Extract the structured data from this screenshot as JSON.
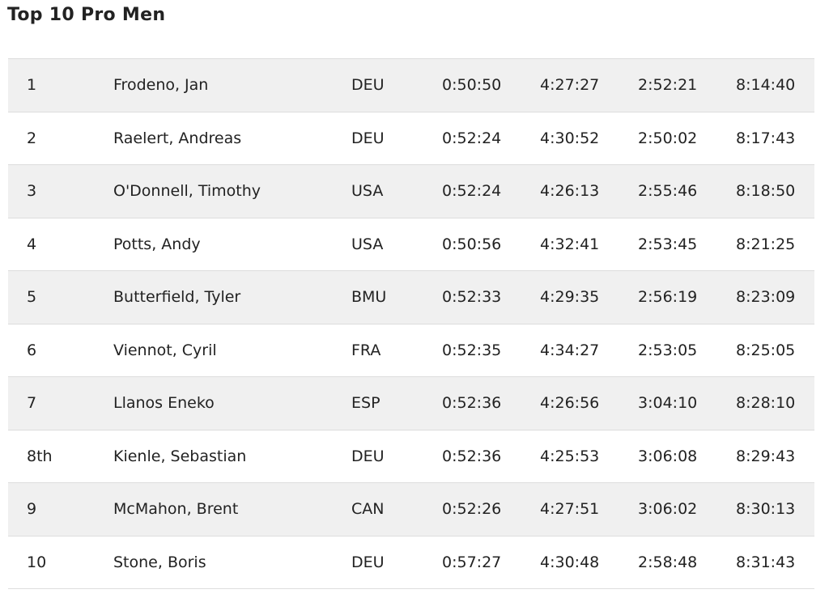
{
  "title": "Top 10 Pro Men",
  "table": {
    "rows": [
      [
        "1",
        "Frodeno, Jan",
        "DEU",
        "0:50:50",
        "4:27:27",
        "2:52:21",
        "8:14:40"
      ],
      [
        "2",
        "Raelert, Andreas",
        "DEU",
        "0:52:24",
        "4:30:52",
        "2:50:02",
        "8:17:43"
      ],
      [
        "3",
        "O'Donnell, Timothy",
        "USA",
        "0:52:24",
        "4:26:13",
        "2:55:46",
        "8:18:50"
      ],
      [
        "4",
        "Potts, Andy",
        "USA",
        "0:50:56",
        "4:32:41",
        "2:53:45",
        "8:21:25"
      ],
      [
        "5",
        "Butterfield, Tyler",
        "BMU",
        "0:52:33",
        "4:29:35",
        "2:56:19",
        "8:23:09"
      ],
      [
        "6",
        "Viennot, Cyril",
        "FRA",
        "0:52:35",
        "4:34:27",
        "2:53:05",
        "8:25:05"
      ],
      [
        "7",
        "Llanos Eneko",
        "ESP",
        "0:52:36",
        "4:26:56",
        "3:04:10",
        "8:28:10"
      ],
      [
        "8th",
        "Kienle, Sebastian",
        "DEU",
        "0:52:36",
        "4:25:53",
        "3:06:08",
        "8:29:43"
      ],
      [
        "9",
        "McMahon, Brent",
        "CAN",
        "0:52:26",
        "4:27:51",
        "3:06:02",
        "8:30:13"
      ],
      [
        "10",
        "Stone, Boris",
        "DEU",
        "0:57:27",
        "4:30:48",
        "2:58:48",
        "8:31:43"
      ]
    ]
  }
}
